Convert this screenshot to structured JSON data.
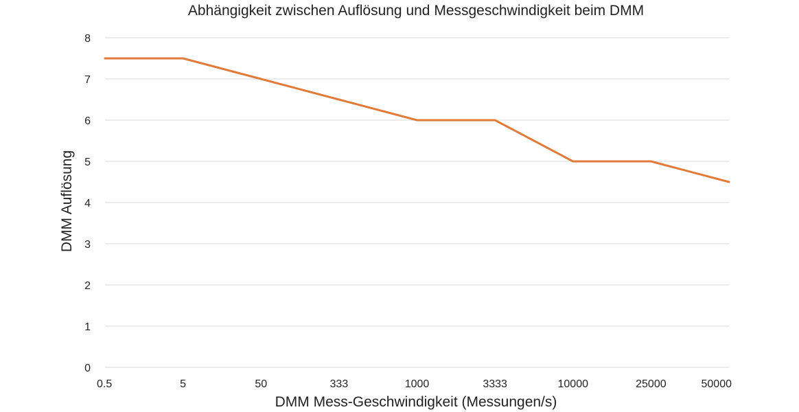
{
  "chart_data": {
    "type": "line",
    "title": "Abhängigkeit zwischen Auflösung und Messgeschwindigkeit beim DMM",
    "xlabel": "DMM Mess-Geschwindigkeit (Messungen/s)",
    "ylabel": "DMM Auflösung",
    "categories": [
      "0.5",
      "5",
      "50",
      "333",
      "1000",
      "3333",
      "10000",
      "25000",
      "50000"
    ],
    "ylim": [
      0,
      8
    ],
    "yticks": [
      "0",
      "1",
      "2",
      "3",
      "4",
      "5",
      "6",
      "7",
      "8"
    ],
    "grid": true,
    "legend": "none",
    "series": [
      {
        "color": "#e07b39",
        "values": [
          7.5,
          7.5,
          7.0,
          6.5,
          6.0,
          6.0,
          5.0,
          5.0,
          4.5
        ]
      }
    ]
  }
}
